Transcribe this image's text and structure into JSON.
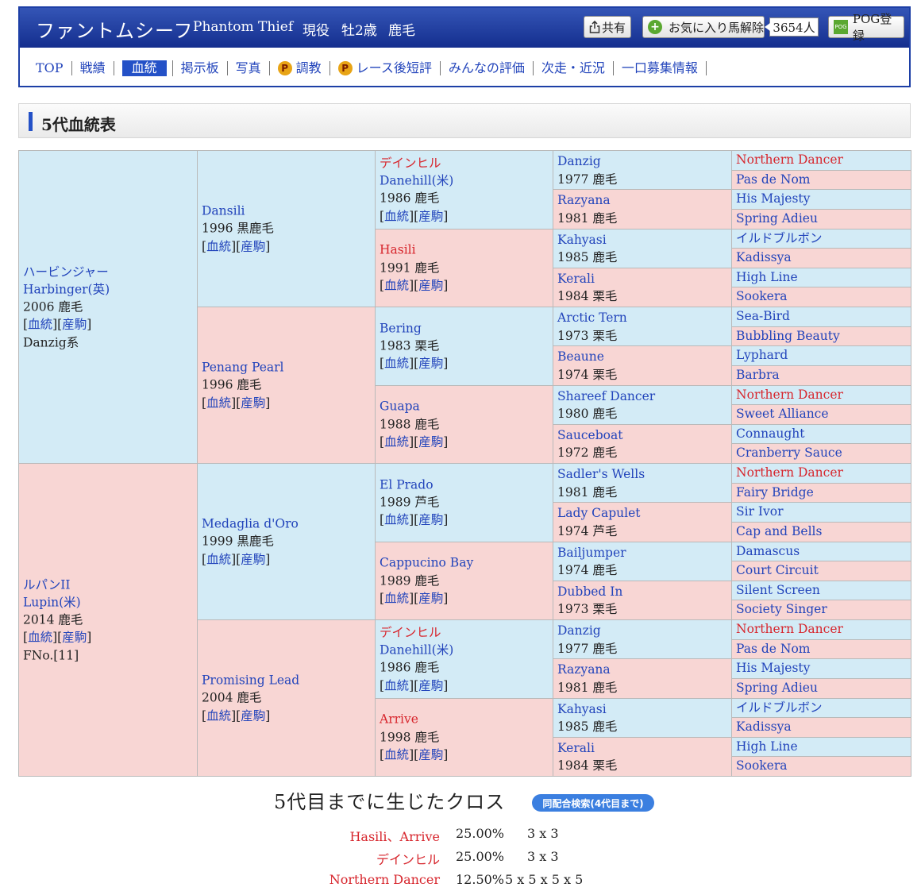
{
  "header": {
    "horse_name": "ファントムシーフ",
    "horse_en": "Phantom Thief",
    "status": "現役",
    "age": "牡2歳",
    "color": "鹿毛",
    "share_label": "共有",
    "fav_label": "お気に入り馬解除",
    "fav_count": "3654人",
    "pog_label": "POG登録",
    "pog_icon_text": "POG"
  },
  "nav": {
    "items": [
      "TOP",
      "戦績",
      "血統",
      "掲示板",
      "写真",
      "調教",
      "レース後短評",
      "みんなの評価",
      "次走・近況",
      "一口募集情報"
    ],
    "p_icon": "P"
  },
  "section": {
    "title": "5代血統表"
  },
  "links": {
    "bloodline": "血統",
    "offspring": "産駒"
  },
  "pedigree": {
    "g1": [
      {
        "jp": "ハービンジャー",
        "name": "Harbinger(英)",
        "year": "2006 鹿毛",
        "extra": "Danzig系"
      },
      {
        "jp": "ルパンII",
        "name": "Lupin(米)",
        "year": "2014 鹿毛",
        "extra": "FNo.[11]"
      }
    ],
    "g2": [
      {
        "name": "Dansili",
        "year": "1996 黒鹿毛"
      },
      {
        "name": "Penang Pearl",
        "year": "1996 鹿毛"
      },
      {
        "name": "Medaglia d'Oro",
        "year": "1999 黒鹿毛"
      },
      {
        "name": "Promising Lead",
        "year": "2004 鹿毛"
      }
    ],
    "g3": [
      {
        "jp": "デインヒル",
        "name": "Danehill(米)",
        "year": "1986 鹿毛"
      },
      {
        "name": "Hasili",
        "year": "1991 鹿毛"
      },
      {
        "name": "Bering",
        "year": "1983 栗毛"
      },
      {
        "name": "Guapa",
        "year": "1988 鹿毛"
      },
      {
        "name": "El Prado",
        "year": "1989 芦毛"
      },
      {
        "name": "Cappucino Bay",
        "year": "1989 鹿毛"
      },
      {
        "jp": "デインヒル",
        "name": "Danehill(米)",
        "year": "1986 鹿毛"
      },
      {
        "name": "Arrive",
        "year": "1998 鹿毛"
      }
    ],
    "g4": [
      {
        "name": "Danzig",
        "year": "1977 鹿毛"
      },
      {
        "name": "Razyana",
        "year": "1981 鹿毛"
      },
      {
        "name": "Kahyasi",
        "year": "1985 鹿毛"
      },
      {
        "name": "Kerali",
        "year": "1984 栗毛"
      },
      {
        "name": "Arctic Tern",
        "year": "1973 栗毛"
      },
      {
        "name": "Beaune",
        "year": "1974 栗毛"
      },
      {
        "name": "Shareef Dancer",
        "year": "1980 鹿毛"
      },
      {
        "name": "Sauceboat",
        "year": "1972 鹿毛"
      },
      {
        "name": "Sadler's Wells",
        "year": "1981 鹿毛"
      },
      {
        "name": "Lady Capulet",
        "year": "1974 芦毛"
      },
      {
        "name": "Bailjumper",
        "year": "1974 鹿毛"
      },
      {
        "name": "Dubbed In",
        "year": "1973 栗毛"
      },
      {
        "name": "Danzig",
        "year": "1977 鹿毛"
      },
      {
        "name": "Razyana",
        "year": "1981 鹿毛"
      },
      {
        "name": "Kahyasi",
        "year": "1985 鹿毛"
      },
      {
        "name": "Kerali",
        "year": "1984 栗毛"
      }
    ],
    "g5": [
      "Northern Dancer",
      "Pas de Nom",
      "His Majesty",
      "Spring Adieu",
      "イルドブルボン",
      "Kadissya",
      "High Line",
      "Sookera",
      "Sea-Bird",
      "Bubbling Beauty",
      "Lyphard",
      "Barbra",
      "Northern Dancer",
      "Sweet Alliance",
      "Connaught",
      "Cranberry Sauce",
      "Northern Dancer",
      "Fairy Bridge",
      "Sir Ivor",
      "Cap and Bells",
      "Damascus",
      "Court Circuit",
      "Silent Screen",
      "Society Singer",
      "Northern Dancer",
      "Pas de Nom",
      "His Majesty",
      "Spring Adieu",
      "イルドブルボン",
      "Kadissya",
      "High Line",
      "Sookera"
    ]
  },
  "cross": {
    "title": "5代目までに生じたクロス",
    "button": "同配合検索(4代目まで)",
    "rows": [
      {
        "name": "Hasili、Arrive",
        "pct": "25.00%",
        "gen": "3 x 3"
      },
      {
        "name": "デインヒル",
        "pct": "25.00%",
        "gen": "3 x 3"
      },
      {
        "name": "Northern Dancer",
        "pct": "12.50%",
        "gen": "5 x 5 x 5 x 5"
      }
    ]
  },
  "colors": {
    "male_bg": "#d3ebf6",
    "female_bg": "#f8d6d4",
    "header_blue": "#1d3fa6",
    "link_blue": "#2244bb",
    "cross_red": "#d7262d"
  }
}
